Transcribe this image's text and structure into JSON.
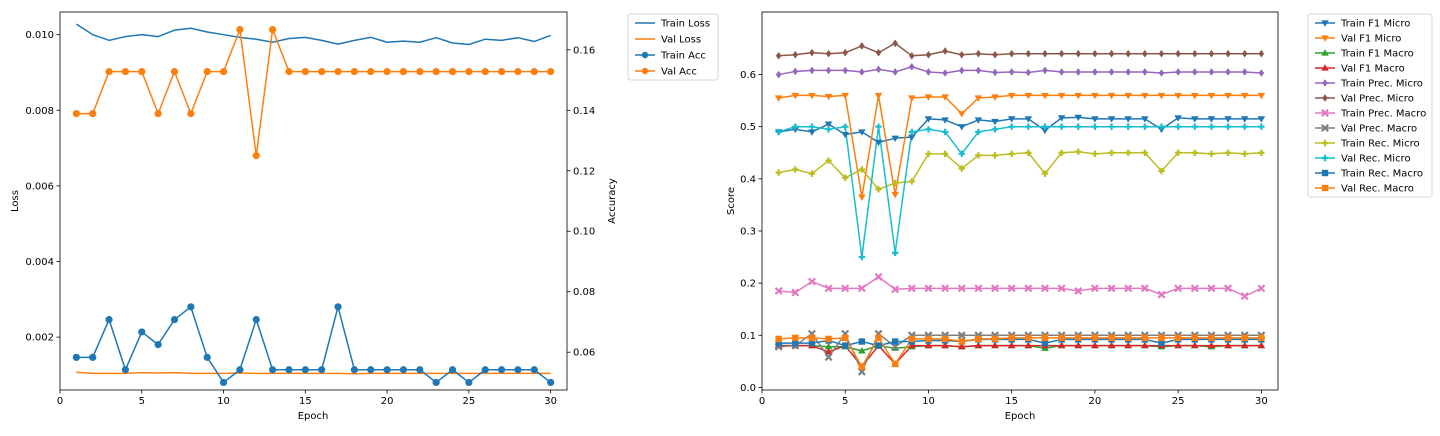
{
  "chart_data": [
    {
      "type": "line",
      "xlabel": "Epoch",
      "ylabel": "Loss",
      "ylabel_right": "Accuracy",
      "xlim": [
        0,
        31
      ],
      "ylim": [
        0.0006,
        0.0106
      ],
      "ylim_right": [
        0.0475,
        0.1725
      ],
      "x_ticks": [
        0,
        5,
        10,
        15,
        20,
        25,
        30
      ],
      "y_ticks": [
        0.002,
        0.004,
        0.006,
        0.008,
        0.01
      ],
      "y_tick_labels": [
        "0.002",
        "0.004",
        "0.006",
        "0.008",
        "0.010"
      ],
      "y_right_ticks": [
        0.06,
        0.08,
        0.1,
        0.12,
        0.14,
        0.16
      ],
      "y_right_tick_labels": [
        "0.06",
        "0.08",
        "0.10",
        "0.12",
        "0.14",
        "0.16"
      ],
      "grid": false,
      "legend_placement": "outside-right",
      "x": [
        1,
        2,
        3,
        4,
        5,
        6,
        7,
        8,
        9,
        10,
        11,
        12,
        13,
        14,
        15,
        16,
        17,
        18,
        19,
        20,
        21,
        22,
        23,
        24,
        25,
        26,
        27,
        28,
        29,
        30
      ],
      "series": [
        {
          "name": "Train Loss",
          "axis": "left",
          "color": "#1f77b4",
          "marker": "none",
          "values": [
            0.01028,
            0.01,
            0.00985,
            0.00995,
            0.01,
            0.00995,
            0.01012,
            0.01017,
            0.01007,
            0.01,
            0.00993,
            0.00988,
            0.0098,
            0.0099,
            0.00993,
            0.00985,
            0.00975,
            0.00985,
            0.00993,
            0.0098,
            0.00983,
            0.0098,
            0.00992,
            0.00978,
            0.00974,
            0.00988,
            0.00985,
            0.00992,
            0.00982,
            0.00998
          ]
        },
        {
          "name": "Val Loss",
          "axis": "left",
          "color": "#ff7f0e",
          "marker": "none",
          "values": [
            0.00107,
            0.00104,
            0.00104,
            0.00104,
            0.00106,
            0.00105,
            0.00106,
            0.00104,
            0.00104,
            0.00104,
            0.00105,
            0.00104,
            0.00104,
            0.00104,
            0.00104,
            0.00104,
            0.00104,
            0.00103,
            0.00104,
            0.00104,
            0.00104,
            0.00104,
            0.00104,
            0.00104,
            0.00104,
            0.00104,
            0.00104,
            0.00104,
            0.00104,
            0.00104
          ]
        },
        {
          "name": "Train Acc",
          "axis": "right",
          "color": "#1f77b4",
          "marker": "circle",
          "values": [
            0.0583,
            0.0583,
            0.0708,
            0.0542,
            0.0667,
            0.0625,
            0.0708,
            0.075,
            0.0583,
            0.05,
            0.0542,
            0.0708,
            0.0542,
            0.0542,
            0.0542,
            0.0542,
            0.075,
            0.0542,
            0.0542,
            0.0542,
            0.0542,
            0.0542,
            0.05,
            0.0542,
            0.05,
            0.0542,
            0.0542,
            0.0542,
            0.0542,
            0.05
          ]
        },
        {
          "name": "Val Acc",
          "axis": "right",
          "color": "#ff7f0e",
          "marker": "circle",
          "values": [
            0.1389,
            0.1389,
            0.1528,
            0.1528,
            0.1528,
            0.1389,
            0.1528,
            0.1389,
            0.1528,
            0.1528,
            0.1667,
            0.125,
            0.1667,
            0.1528,
            0.1528,
            0.1528,
            0.1528,
            0.1528,
            0.1528,
            0.1528,
            0.1528,
            0.1528,
            0.1528,
            0.1528,
            0.1528,
            0.1528,
            0.1528,
            0.1528,
            0.1528,
            0.1528
          ]
        }
      ]
    },
    {
      "type": "line",
      "xlabel": "Epoch",
      "ylabel": "Score",
      "xlim": [
        0,
        31
      ],
      "ylim": [
        -0.005,
        0.72
      ],
      "x_ticks": [
        0,
        5,
        10,
        15,
        20,
        25,
        30
      ],
      "y_ticks": [
        0.0,
        0.1,
        0.2,
        0.3,
        0.4,
        0.5,
        0.6
      ],
      "y_tick_labels": [
        "0.0",
        "0.1",
        "0.2",
        "0.3",
        "0.4",
        "0.5",
        "0.6"
      ],
      "grid": false,
      "legend_placement": "outside-right",
      "x": [
        1,
        2,
        3,
        4,
        5,
        6,
        7,
        8,
        9,
        10,
        11,
        12,
        13,
        14,
        15,
        16,
        17,
        18,
        19,
        20,
        21,
        22,
        23,
        24,
        25,
        26,
        27,
        28,
        29,
        30
      ],
      "series": [
        {
          "name": "Train F1 Micro",
          "color": "#1f77b4",
          "marker": "triangle-down",
          "values": [
            0.49,
            0.495,
            0.49,
            0.505,
            0.485,
            0.49,
            0.47,
            0.478,
            0.48,
            0.515,
            0.513,
            0.5,
            0.513,
            0.51,
            0.515,
            0.515,
            0.493,
            0.517,
            0.518,
            0.515,
            0.515,
            0.515,
            0.515,
            0.495,
            0.517,
            0.515,
            0.515,
            0.515,
            0.515,
            0.515
          ]
        },
        {
          "name": "Val F1 Micro",
          "color": "#ff7f0e",
          "marker": "triangle-down",
          "values": [
            0.555,
            0.56,
            0.56,
            0.558,
            0.56,
            0.365,
            0.56,
            0.37,
            0.555,
            0.557,
            0.557,
            0.525,
            0.555,
            0.557,
            0.56,
            0.56,
            0.56,
            0.56,
            0.56,
            0.56,
            0.56,
            0.56,
            0.56,
            0.56,
            0.56,
            0.56,
            0.56,
            0.56,
            0.56,
            0.56
          ]
        },
        {
          "name": "Train F1 Macro",
          "color": "#2ca02c",
          "marker": "triangle-up",
          "values": [
            0.08,
            0.08,
            0.08,
            0.078,
            0.078,
            0.07,
            0.08,
            0.075,
            0.078,
            0.08,
            0.08,
            0.078,
            0.08,
            0.08,
            0.08,
            0.08,
            0.075,
            0.08,
            0.08,
            0.08,
            0.08,
            0.08,
            0.08,
            0.078,
            0.08,
            0.08,
            0.078,
            0.08,
            0.08,
            0.08
          ]
        },
        {
          "name": "Val F1 Macro",
          "color": "#d62728",
          "marker": "triangle-up",
          "values": [
            0.08,
            0.08,
            0.08,
            0.068,
            0.08,
            0.04,
            0.08,
            0.045,
            0.08,
            0.08,
            0.08,
            0.078,
            0.08,
            0.08,
            0.08,
            0.08,
            0.08,
            0.08,
            0.08,
            0.08,
            0.08,
            0.08,
            0.08,
            0.08,
            0.08,
            0.08,
            0.08,
            0.08,
            0.08,
            0.08
          ]
        },
        {
          "name": "Train Prec. Micro",
          "color": "#9467bd",
          "marker": "diamond",
          "values": [
            0.6,
            0.606,
            0.608,
            0.608,
            0.608,
            0.605,
            0.61,
            0.605,
            0.615,
            0.605,
            0.603,
            0.608,
            0.608,
            0.604,
            0.605,
            0.604,
            0.608,
            0.605,
            0.605,
            0.605,
            0.605,
            0.605,
            0.605,
            0.603,
            0.605,
            0.605,
            0.605,
            0.605,
            0.605,
            0.603
          ]
        },
        {
          "name": "Val Prec. Micro",
          "color": "#8c564b",
          "marker": "diamond",
          "values": [
            0.636,
            0.638,
            0.642,
            0.64,
            0.642,
            0.655,
            0.642,
            0.66,
            0.636,
            0.638,
            0.645,
            0.638,
            0.64,
            0.638,
            0.64,
            0.64,
            0.64,
            0.64,
            0.64,
            0.64,
            0.64,
            0.64,
            0.64,
            0.64,
            0.64,
            0.64,
            0.64,
            0.64,
            0.64,
            0.64
          ]
        },
        {
          "name": "Train Prec. Macro",
          "color": "#e377c2",
          "marker": "x",
          "values": [
            0.185,
            0.182,
            0.203,
            0.19,
            0.19,
            0.19,
            0.212,
            0.188,
            0.19,
            0.19,
            0.19,
            0.19,
            0.19,
            0.19,
            0.19,
            0.19,
            0.19,
            0.19,
            0.185,
            0.19,
            0.19,
            0.19,
            0.19,
            0.178,
            0.19,
            0.19,
            0.19,
            0.19,
            0.175,
            0.19
          ]
        },
        {
          "name": "Val Prec. Macro",
          "color": "#7f7f7f",
          "marker": "x",
          "values": [
            0.078,
            0.08,
            0.103,
            0.058,
            0.103,
            0.03,
            0.103,
            0.078,
            0.1,
            0.1,
            0.1,
            0.1,
            0.1,
            0.1,
            0.1,
            0.1,
            0.1,
            0.1,
            0.1,
            0.1,
            0.1,
            0.1,
            0.1,
            0.1,
            0.1,
            0.1,
            0.1,
            0.1,
            0.1,
            0.1
          ]
        },
        {
          "name": "Train Rec. Micro",
          "color": "#bcbd22",
          "marker": "plus",
          "values": [
            0.412,
            0.418,
            0.41,
            0.435,
            0.402,
            0.418,
            0.38,
            0.392,
            0.395,
            0.448,
            0.448,
            0.42,
            0.445,
            0.445,
            0.448,
            0.45,
            0.41,
            0.45,
            0.452,
            0.448,
            0.45,
            0.45,
            0.45,
            0.415,
            0.45,
            0.45,
            0.448,
            0.45,
            0.448,
            0.45
          ]
        },
        {
          "name": "Val Rec. Micro",
          "color": "#17becf",
          "marker": "plus",
          "values": [
            0.49,
            0.5,
            0.5,
            0.495,
            0.5,
            0.25,
            0.5,
            0.258,
            0.49,
            0.495,
            0.49,
            0.448,
            0.49,
            0.495,
            0.5,
            0.5,
            0.5,
            0.5,
            0.5,
            0.5,
            0.5,
            0.5,
            0.5,
            0.5,
            0.5,
            0.5,
            0.5,
            0.5,
            0.5,
            0.5
          ]
        },
        {
          "name": "Train Rec. Macro",
          "color": "#1f77b4",
          "marker": "square",
          "values": [
            0.085,
            0.085,
            0.085,
            0.09,
            0.08,
            0.088,
            0.08,
            0.088,
            0.088,
            0.09,
            0.09,
            0.088,
            0.092,
            0.092,
            0.092,
            0.092,
            0.085,
            0.092,
            0.092,
            0.092,
            0.092,
            0.092,
            0.092,
            0.085,
            0.092,
            0.092,
            0.092,
            0.092,
            0.092,
            0.092
          ]
        },
        {
          "name": "Val Rec. Macro",
          "color": "#ff7f0e",
          "marker": "square",
          "values": [
            0.093,
            0.095,
            0.095,
            0.093,
            0.095,
            0.04,
            0.095,
            0.045,
            0.093,
            0.093,
            0.093,
            0.088,
            0.093,
            0.093,
            0.095,
            0.095,
            0.095,
            0.095,
            0.095,
            0.095,
            0.095,
            0.095,
            0.095,
            0.095,
            0.095,
            0.095,
            0.095,
            0.095,
            0.095,
            0.095
          ]
        }
      ]
    }
  ]
}
